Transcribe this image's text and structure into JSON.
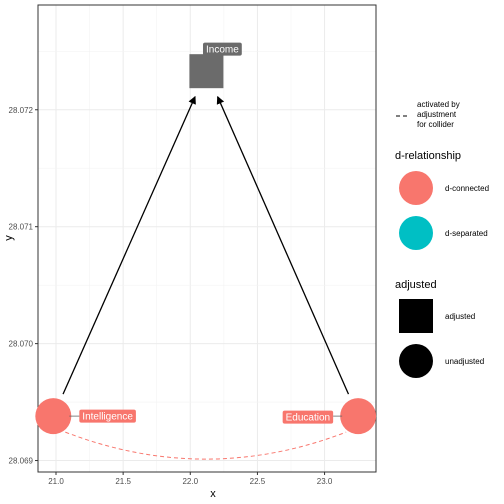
{
  "axes": {
    "xlabel": "x",
    "ylabel": "y",
    "x_ticks": [
      "21.0",
      "21.5",
      "22.0",
      "22.5",
      "23.0"
    ],
    "y_ticks": [
      "28.069",
      "28.070",
      "28.071",
      "28.072"
    ]
  },
  "nodes": [
    {
      "id": "Intelligence",
      "label": "Intelligence",
      "x": 20.98,
      "y": 28.06938,
      "shape": "circle",
      "status": "d-connected",
      "adjusted": "unadjusted"
    },
    {
      "id": "Education",
      "label": "Education",
      "x": 23.25,
      "y": 28.06938,
      "shape": "circle",
      "status": "d-connected",
      "adjusted": "unadjusted"
    },
    {
      "id": "Income",
      "label": "Income",
      "x": 22.12,
      "y": 28.07233,
      "shape": "square",
      "status": "adjusted",
      "adjusted": "adjusted"
    }
  ],
  "edges": [
    {
      "from": "Intelligence",
      "to": "Income",
      "type": "directed"
    },
    {
      "from": "Education",
      "to": "Income",
      "type": "directed"
    },
    {
      "from": "Intelligence",
      "to": "Education",
      "type": "collider-activated"
    }
  ],
  "legend": {
    "linetype": {
      "label": "activated by adjustment for collider"
    },
    "d_relationship": {
      "title": "d-relationship",
      "items": [
        {
          "label": "d-connected",
          "color": "#F8766D"
        },
        {
          "label": "d-separated",
          "color": "#00BFC4"
        }
      ]
    },
    "adjusted": {
      "title": "adjusted",
      "items": [
        {
          "label": "adjusted",
          "shape": "square"
        },
        {
          "label": "unadjusted",
          "shape": "circle"
        }
      ]
    }
  },
  "colors": {
    "d_connected": "#F8766D",
    "d_separated": "#00BFC4",
    "adjusted_node": "#6B6B6B",
    "grid": "#EBEBEB",
    "edge": "#000000",
    "collider_edge": "#F8766D"
  }
}
